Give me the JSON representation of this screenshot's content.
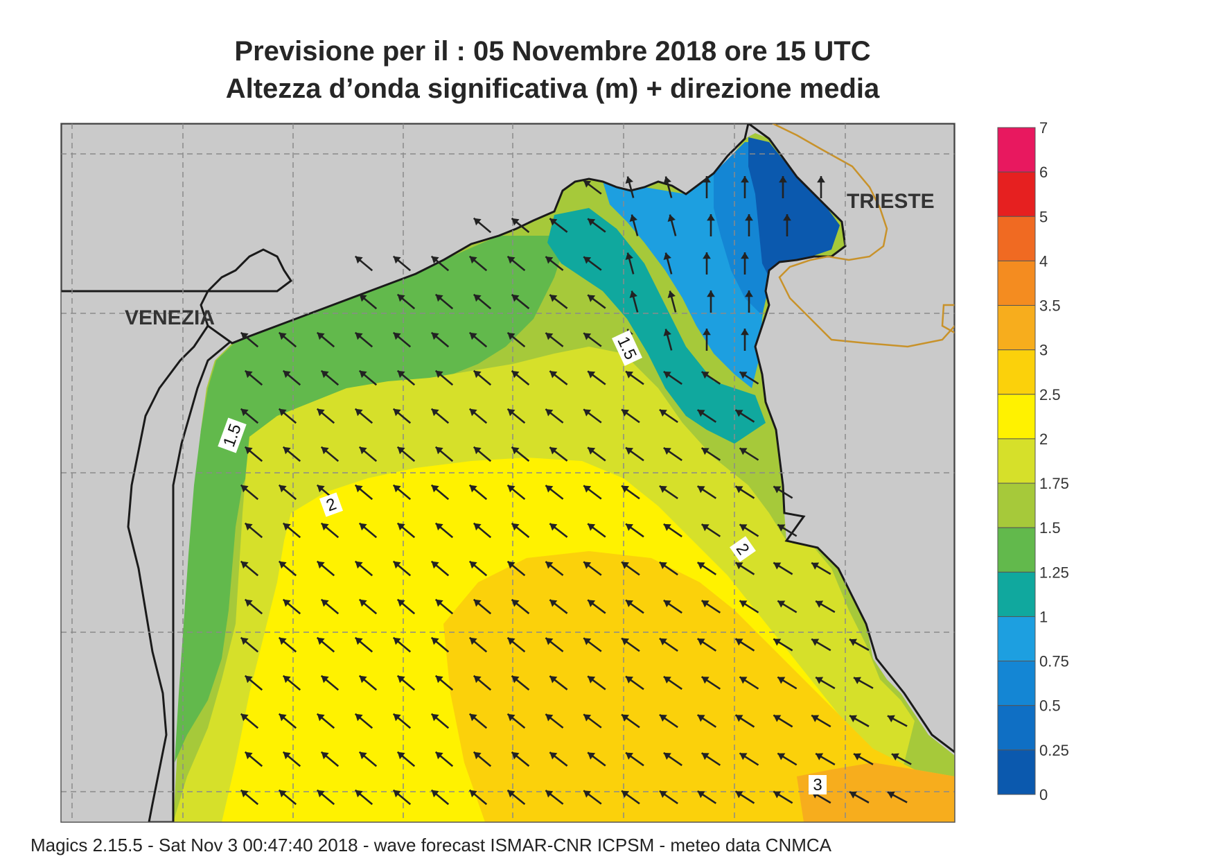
{
  "title_line1": "Previsione per il  :  05 Novembre  2018   ore 15 UTC",
  "title_line2": "Altezza d’onda significativa (m) + direzione media",
  "footer": "Magics 2.15.5 - Sat Nov  3 00:47:40 2018 - wave forecast  ISMAR-CNR  ICPSM - meteo data   CNMCA",
  "cities": {
    "venezia": "VENEZIA",
    "trieste": "TRIESTE"
  },
  "contour_labels": [
    "1.5",
    "1.5",
    "2",
    "2",
    "3"
  ],
  "legend": {
    "labels": [
      "7",
      "6",
      "5",
      "4",
      "3.5",
      "3",
      "2.5",
      "2",
      "1.75",
      "1.5",
      "1.25",
      "1",
      "0.75",
      "0.5",
      "0.25",
      "0"
    ],
    "colors": [
      "#e8185f",
      "#e62020",
      "#f06a22",
      "#f48c20",
      "#f7ad1d",
      "#fbd10b",
      "#fff200",
      "#d6e02a",
      "#a6c93a",
      "#62b94c",
      "#10a89e",
      "#1d9fe0",
      "#1486d4",
      "#0f6fc4",
      "#0b59ae"
    ]
  },
  "colors": {
    "land": "#cacaca",
    "sea_0_25": "#0b59ae",
    "sea_0_5": "#1486d4",
    "sea_0_75": "#1d9fe0",
    "sea_1": "#10a89e",
    "sea_1_25": "#62b94c",
    "sea_1_5": "#a6c93a",
    "sea_1_75": "#d6e02a",
    "sea_2": "#fff200",
    "sea_2_5": "#fbd10b",
    "sea_3": "#f7ad1d",
    "coastline": "#1a1a1a",
    "border": "#c8922a"
  },
  "wave_direction": "NW"
}
